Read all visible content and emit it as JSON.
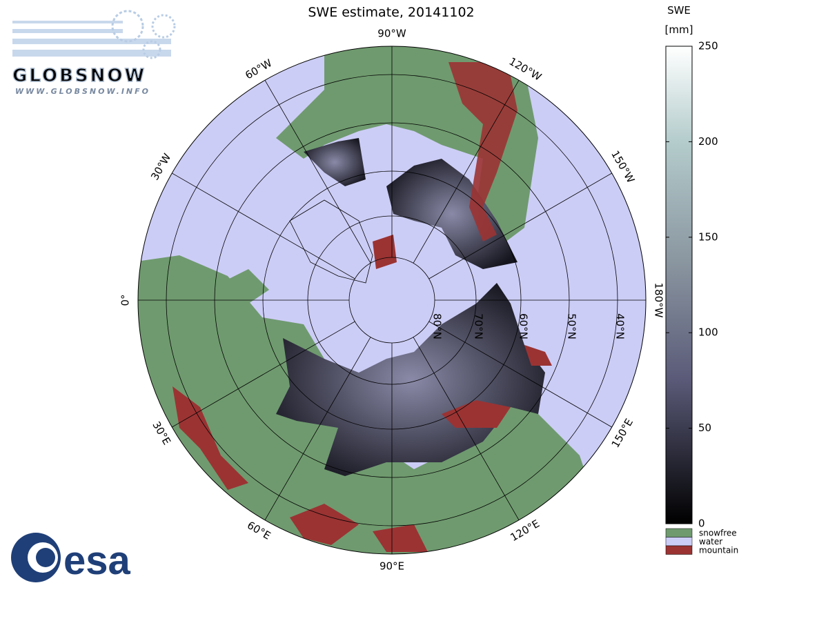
{
  "map": {
    "title": "SWE estimate, 20141102",
    "longitude_labels": [
      "0°",
      "30°W",
      "60°W",
      "90°W",
      "120°W",
      "150°W",
      "180°W",
      "150°E",
      "120°E",
      "90°E",
      "60°E",
      "30°E"
    ],
    "latitude_labels": [
      "80°N",
      "70°N",
      "60°N",
      "50°N",
      "40°N"
    ]
  },
  "colorbar": {
    "title": [
      "SWE",
      "[mm]"
    ],
    "lim": [
      0,
      250
    ],
    "ticks": [
      0,
      50,
      100,
      150,
      200,
      250
    ],
    "legend": [
      "snowfree",
      "water",
      "mountain"
    ]
  },
  "logos": {
    "globsnow": "GLOBSNOW",
    "globsnow_url": "WWW.GLOBSNOW.INFO",
    "esa": "esa"
  }
}
